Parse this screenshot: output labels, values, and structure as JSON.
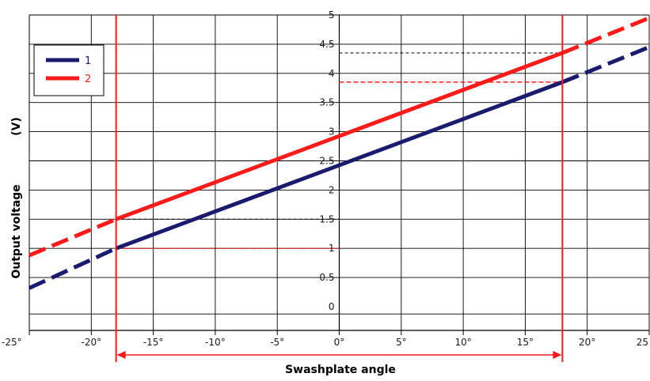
{
  "chart_data": {
    "type": "line",
    "xlabel": "Swashplate angle",
    "ylabel": "Output voltage",
    "ylabel_unit": "(V)",
    "xlim": [
      -25,
      25
    ],
    "ylim": [
      -0.25,
      5
    ],
    "x_ticks": [
      -25,
      -20,
      -15,
      -10,
      -5,
      0,
      5,
      10,
      15,
      20,
      25
    ],
    "x_tick_labels": [
      "-25°",
      "-20°",
      "-15°",
      "-10°",
      "-5°",
      "0°",
      "5°",
      "10°",
      "15°",
      "20°",
      "25"
    ],
    "y_ticks": [
      0,
      0.5,
      1,
      1.5,
      2,
      2.5,
      3,
      3.5,
      4,
      4.5,
      5
    ],
    "y_tick_labels": [
      "0",
      "0.5",
      "1",
      "1.5",
      "2",
      "2.5",
      "3",
      "3.5",
      "4",
      "4.5",
      "5"
    ],
    "grid": true,
    "legend_position": "top-left",
    "operating_range": [
      -18,
      18
    ],
    "series": [
      {
        "name": "1",
        "color": "#1a1a6e",
        "x": [
          -25,
          -18,
          18,
          25
        ],
        "y": [
          0.32,
          1.0,
          3.85,
          4.45
        ],
        "solid_range": [
          -18,
          18
        ]
      },
      {
        "name": "2",
        "color": "#ff1a1a",
        "x": [
          -25,
          -18,
          18,
          25
        ],
        "y": [
          0.88,
          1.5,
          4.35,
          4.95
        ],
        "solid_range": [
          -18,
          18
        ]
      }
    ],
    "reference_lines": [
      {
        "x_from": -18,
        "x_to": 0,
        "y": 1.5,
        "color": "#000000"
      },
      {
        "x_from": -18,
        "x_to": 0,
        "y": 1.0,
        "color": "#ff1a1a"
      },
      {
        "x_from": 0,
        "x_to": 18,
        "y": 4.35,
        "color": "#000000"
      },
      {
        "x_from": 0,
        "x_to": 18,
        "y": 3.85,
        "color": "#ff1a1a"
      }
    ]
  }
}
